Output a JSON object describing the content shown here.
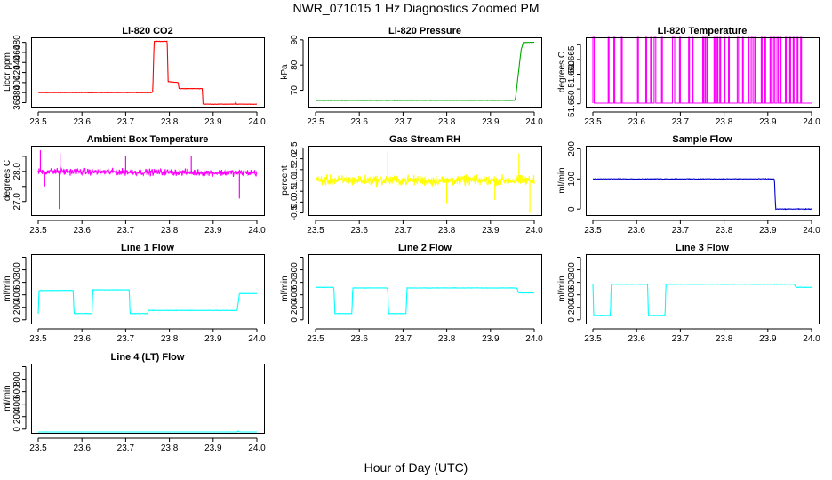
{
  "figure": {
    "title": "NWR_071015  1 Hz Diagnostics Zoomed PM",
    "xlabel": "Hour of Day (UTC)"
  },
  "chart_data": [
    {
      "type": "line",
      "title": "Li-820 CO2",
      "ylabel": "Licor ppm",
      "xlim": [
        23.5,
        24.0
      ],
      "ylim": [
        352,
        490
      ],
      "xticks": [
        "23.5",
        "23.6",
        "23.7",
        "23.8",
        "23.9",
        "24.0"
      ],
      "yticks": [
        {
          "v": 360,
          "label": "360"
        },
        {
          "v": 380,
          "label": "380"
        },
        {
          "v": 400,
          "label": "400"
        },
        {
          "v": 420,
          "label": "420"
        },
        {
          "v": 440,
          "label": "440"
        },
        {
          "v": 460,
          "label": "460"
        },
        {
          "v": 480,
          "label": "480"
        }
      ],
      "color": "#ff0000",
      "style": "step",
      "noise": 0.6,
      "series": [
        [
          23.5,
          380
        ],
        [
          23.76,
          380
        ],
        [
          23.762,
          382
        ],
        [
          23.765,
          482
        ],
        [
          23.795,
          482
        ],
        [
          23.797,
          402
        ],
        [
          23.82,
          400
        ],
        [
          23.822,
          388
        ],
        [
          23.875,
          388
        ],
        [
          23.877,
          357
        ],
        [
          23.95,
          357
        ],
        [
          23.952,
          362
        ],
        [
          23.953,
          357
        ],
        [
          24.0,
          357
        ]
      ]
    },
    {
      "type": "line",
      "title": "Li-820 Pressure",
      "ylabel": "kPa",
      "xlim": [
        23.5,
        24.0
      ],
      "ylim": [
        63.5,
        91
      ],
      "xticks": [
        "23.5",
        "23.6",
        "23.7",
        "23.8",
        "23.9",
        "24.0"
      ],
      "yticks": [
        {
          "v": 70,
          "label": "70"
        },
        {
          "v": 80,
          "label": "80"
        },
        {
          "v": 90,
          "label": "90"
        }
      ],
      "color": "#00aa00",
      "style": "step",
      "noise": 0.12,
      "series": [
        [
          23.5,
          66
        ],
        [
          23.955,
          66
        ],
        [
          23.957,
          66.5
        ],
        [
          23.97,
          86
        ],
        [
          23.975,
          89
        ],
        [
          24.0,
          89
        ]
      ]
    },
    {
      "type": "line",
      "title": "Li-820 Temperature",
      "ylabel": "degrees C",
      "xlim": [
        23.5,
        24.0
      ],
      "ylim": [
        51.649,
        51.6725
      ],
      "xticks": [
        "23.5",
        "23.6",
        "23.7",
        "23.8",
        "23.9",
        "24.0"
      ],
      "yticks": [
        {
          "v": 51.65,
          "label": "51.650"
        },
        {
          "v": 51.655,
          "label": ""
        },
        {
          "v": 51.66,
          "label": "51.660"
        },
        {
          "v": 51.665,
          "label": "51.665"
        },
        {
          "v": 51.67,
          "label": ""
        }
      ],
      "color": "#ff00ff",
      "style": "binary",
      "low": 51.6502,
      "high": 51.6725,
      "spikes": [
        [
          23.5,
          23.503
        ],
        [
          23.535,
          23.537
        ],
        [
          23.548,
          23.55
        ],
        [
          23.565,
          23.567
        ],
        [
          23.602,
          23.604
        ],
        [
          23.621,
          23.623
        ],
        [
          23.632,
          23.634
        ],
        [
          23.64,
          23.644
        ],
        [
          23.657,
          23.659
        ],
        [
          23.682,
          23.687
        ],
        [
          23.698,
          23.7
        ],
        [
          23.719,
          23.721
        ],
        [
          23.727,
          23.729
        ],
        [
          23.751,
          23.753
        ],
        [
          23.756,
          23.758
        ],
        [
          23.761,
          23.763
        ],
        [
          23.777,
          23.779
        ],
        [
          23.784,
          23.786
        ],
        [
          23.79,
          23.792
        ],
        [
          23.8,
          23.802
        ],
        [
          23.81,
          23.812
        ],
        [
          23.83,
          23.833
        ],
        [
          23.842,
          23.844
        ],
        [
          23.855,
          23.857
        ],
        [
          23.862,
          23.866
        ],
        [
          23.87,
          23.872
        ],
        [
          23.885,
          23.887
        ],
        [
          23.893,
          23.895
        ],
        [
          23.905,
          23.907
        ],
        [
          23.913,
          23.916
        ],
        [
          23.921,
          23.924
        ],
        [
          23.928,
          23.93
        ],
        [
          23.94,
          23.942
        ],
        [
          23.95,
          23.952
        ],
        [
          23.958,
          23.96
        ],
        [
          23.967,
          23.969
        ],
        [
          23.975,
          23.977
        ]
      ]
    },
    {
      "type": "line",
      "title": "Ambient Box Temperature",
      "ylabel": "degrees C",
      "xlim": [
        23.5,
        24.0
      ],
      "ylim": [
        26.55,
        28.85
      ],
      "xticks": [
        "23.5",
        "23.6",
        "23.7",
        "23.8",
        "23.9",
        "24.0"
      ],
      "yticks": [
        {
          "v": 27.0,
          "label": "27.0"
        },
        {
          "v": 27.5,
          "label": ""
        },
        {
          "v": 28.0,
          "label": "28.0"
        },
        {
          "v": 28.5,
          "label": ""
        }
      ],
      "color": "#ff00ff",
      "style": "noise",
      "noise": 0.16,
      "series": [
        [
          23.5,
          28.0
        ],
        [
          24.0,
          27.95
        ]
      ],
      "outliers": [
        [
          23.548,
          26.75
        ],
        [
          23.515,
          27.5
        ],
        [
          23.96,
          27.1
        ],
        [
          23.505,
          28.7
        ],
        [
          23.55,
          28.6
        ],
        [
          23.7,
          28.5
        ],
        [
          23.85,
          28.5
        ]
      ]
    },
    {
      "type": "line",
      "title": "Gas Stream RH",
      "ylabel": "percent",
      "xlim": [
        23.5,
        24.0
      ],
      "ylim": [
        -0.6,
        2.6
      ],
      "xticks": [
        "23.5",
        "23.6",
        "23.7",
        "23.8",
        "23.9",
        "24.0"
      ],
      "yticks": [
        {
          "v": -0.5,
          "label": "-0.5"
        },
        {
          "v": 0.0,
          "label": "0.0"
        },
        {
          "v": 0.5,
          "label": "0.5"
        },
        {
          "v": 1.0,
          "label": "1.0"
        },
        {
          "v": 1.5,
          "label": "1.5"
        },
        {
          "v": 2.0,
          "label": "2.0"
        },
        {
          "v": 2.5,
          "label": "2.5"
        }
      ],
      "color": "#ffff00",
      "style": "noise",
      "noise": 0.35,
      "series": [
        [
          23.5,
          1.0
        ],
        [
          24.0,
          1.0
        ]
      ],
      "outliers": [
        [
          23.665,
          2.35
        ],
        [
          23.965,
          2.25
        ],
        [
          23.99,
          -0.5
        ],
        [
          23.91,
          0.1
        ],
        [
          23.8,
          -0.05
        ]
      ]
    },
    {
      "type": "line",
      "title": "Sample Flow",
      "ylabel": "ml/min",
      "xlim": [
        23.5,
        24.0
      ],
      "ylim": [
        -20,
        210
      ],
      "xticks": [
        "23.5",
        "23.6",
        "23.7",
        "23.8",
        "23.9",
        "24.0"
      ],
      "yticks": [
        {
          "v": 0,
          "label": "0"
        },
        {
          "v": 100,
          "label": "100"
        },
        {
          "v": 200,
          "label": "200"
        }
      ],
      "color": "#0000cc",
      "style": "step",
      "noise": 1.5,
      "series": [
        [
          23.5,
          100
        ],
        [
          23.915,
          100
        ],
        [
          23.918,
          0
        ],
        [
          24.0,
          0
        ]
      ]
    },
    {
      "type": "line",
      "title": "Line 1 Flow",
      "ylabel": "ml/min",
      "xlim": [
        23.5,
        24.0
      ],
      "ylim": [
        -60,
        1050
      ],
      "xticks": [
        "23.5",
        "23.6",
        "23.7",
        "23.8",
        "23.9",
        "24.0"
      ],
      "yticks": [
        {
          "v": 0,
          "label": "0"
        },
        {
          "v": 200,
          "label": "200"
        },
        {
          "v": 400,
          "label": "400"
        },
        {
          "v": 600,
          "label": "600"
        },
        {
          "v": 800,
          "label": "800"
        },
        {
          "v": 1000,
          "label": ""
        }
      ],
      "color": "#00ffff",
      "style": "step",
      "noise": 5,
      "series": [
        [
          23.5,
          100
        ],
        [
          23.502,
          470
        ],
        [
          23.58,
          470
        ],
        [
          23.582,
          100
        ],
        [
          23.623,
          100
        ],
        [
          23.625,
          480
        ],
        [
          23.708,
          480
        ],
        [
          23.71,
          100
        ],
        [
          23.75,
          100
        ],
        [
          23.752,
          150
        ],
        [
          23.955,
          150
        ],
        [
          23.96,
          420
        ],
        [
          24.0,
          420
        ]
      ]
    },
    {
      "type": "line",
      "title": "Line 2 Flow",
      "ylabel": "ml/min",
      "xlim": [
        23.5,
        24.0
      ],
      "ylim": [
        -60,
        1050
      ],
      "xticks": [
        "23.5",
        "23.6",
        "23.7",
        "23.8",
        "23.9",
        "24.0"
      ],
      "yticks": [
        {
          "v": 0,
          "label": "0"
        },
        {
          "v": 200,
          "label": "200"
        },
        {
          "v": 400,
          "label": "400"
        },
        {
          "v": 600,
          "label": "600"
        },
        {
          "v": 800,
          "label": "800"
        },
        {
          "v": 1000,
          "label": ""
        }
      ],
      "color": "#00ffff",
      "style": "step",
      "noise": 5,
      "series": [
        [
          23.5,
          520
        ],
        [
          23.542,
          520
        ],
        [
          23.544,
          100
        ],
        [
          23.583,
          100
        ],
        [
          23.585,
          510
        ],
        [
          23.665,
          510
        ],
        [
          23.667,
          100
        ],
        [
          23.707,
          100
        ],
        [
          23.709,
          510
        ],
        [
          23.96,
          510
        ],
        [
          23.965,
          430
        ],
        [
          24.0,
          430
        ]
      ]
    },
    {
      "type": "line",
      "title": "Line 3 Flow",
      "ylabel": "ml/min",
      "xlim": [
        23.5,
        24.0
      ],
      "ylim": [
        -60,
        1050
      ],
      "xticks": [
        "23.5",
        "23.6",
        "23.7",
        "23.8",
        "23.9",
        "24.0"
      ],
      "yticks": [
        {
          "v": 0,
          "label": "0"
        },
        {
          "v": 200,
          "label": "200"
        },
        {
          "v": 400,
          "label": "400"
        },
        {
          "v": 600,
          "label": "600"
        },
        {
          "v": 800,
          "label": "800"
        },
        {
          "v": 1000,
          "label": ""
        }
      ],
      "color": "#00ffff",
      "style": "step",
      "noise": 5,
      "series": [
        [
          23.5,
          580
        ],
        [
          23.502,
          70
        ],
        [
          23.54,
          70
        ],
        [
          23.542,
          570
        ],
        [
          23.625,
          570
        ],
        [
          23.627,
          70
        ],
        [
          23.665,
          70
        ],
        [
          23.667,
          570
        ],
        [
          23.96,
          570
        ],
        [
          23.965,
          520
        ],
        [
          24.0,
          520
        ]
      ]
    },
    {
      "type": "line",
      "title": "Line 4 (LT) Flow",
      "ylabel": "ml/min",
      "xlim": [
        23.5,
        24.0
      ],
      "ylim": [
        -60,
        1050
      ],
      "xticks": [
        "23.5",
        "23.6",
        "23.7",
        "23.8",
        "23.9",
        "24.0"
      ],
      "yticks": [
        {
          "v": 0,
          "label": "0"
        },
        {
          "v": 200,
          "label": "200"
        },
        {
          "v": 400,
          "label": "400"
        },
        {
          "v": 600,
          "label": "600"
        },
        {
          "v": 800,
          "label": "800"
        },
        {
          "v": 1000,
          "label": ""
        }
      ],
      "color": "#00ffff",
      "style": "step",
      "noise": 3,
      "series": [
        [
          23.5,
          -60
        ],
        [
          23.955,
          -60
        ],
        [
          23.957,
          -30
        ],
        [
          23.962,
          -55
        ],
        [
          24.0,
          -55
        ]
      ]
    }
  ]
}
